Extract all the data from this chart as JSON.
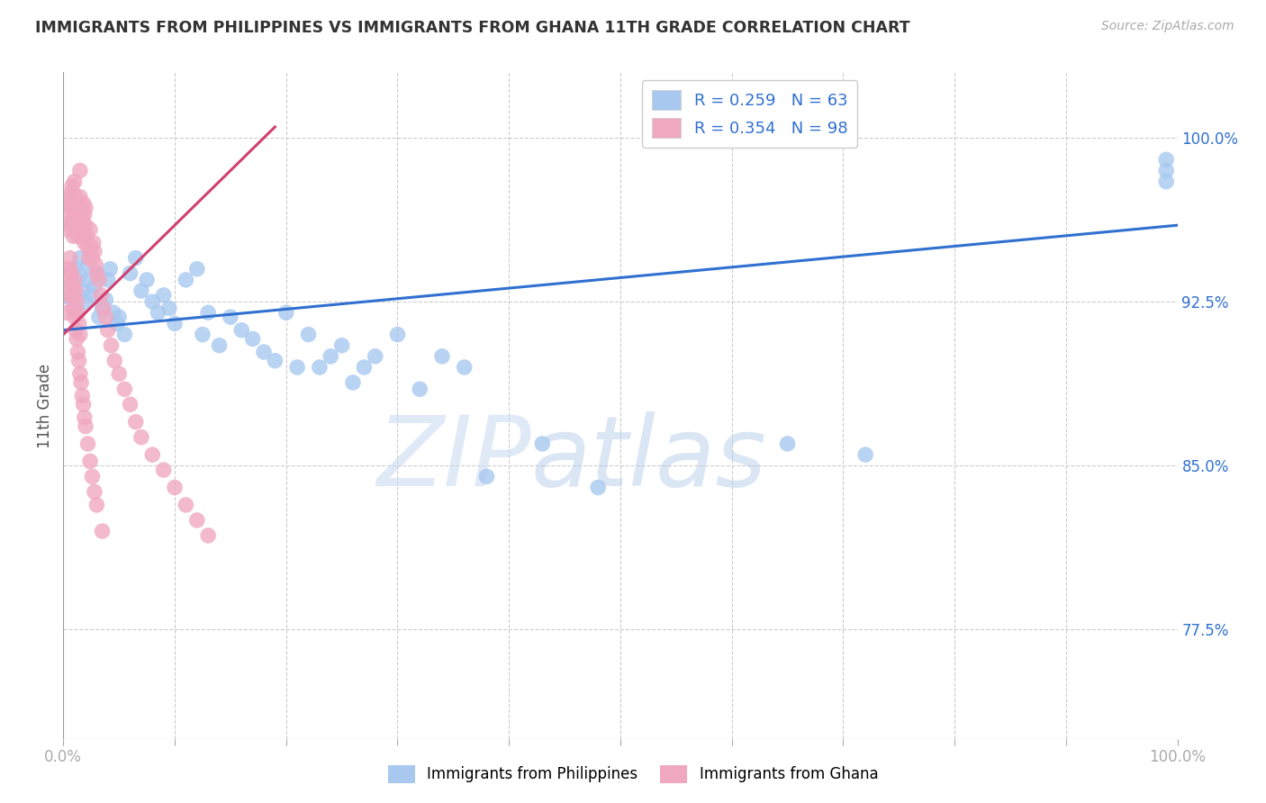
{
  "title": "IMMIGRANTS FROM PHILIPPINES VS IMMIGRANTS FROM GHANA 11TH GRADE CORRELATION CHART",
  "source": "Source: ZipAtlas.com",
  "ylabel": "11th Grade",
  "ylabel_right_ticks": [
    "100.0%",
    "92.5%",
    "85.0%",
    "77.5%"
  ],
  "ylabel_right_vals": [
    1.0,
    0.925,
    0.85,
    0.775
  ],
  "xlim": [
    0.0,
    1.0
  ],
  "ylim": [
    0.725,
    1.03
  ],
  "legend_R1": "R = 0.259",
  "legend_N1": "N = 63",
  "legend_R2": "R = 0.354",
  "legend_N2": "N = 98",
  "blue_color": "#a8c8f0",
  "pink_color": "#f0a8c0",
  "trendline_blue": "#3070d0",
  "trendline_pink": "#d04070",
  "label1": "Immigrants from Philippines",
  "label2": "Immigrants from Ghana",
  "blue_scatter_x": [
    0.005,
    0.008,
    0.01,
    0.012,
    0.015,
    0.015,
    0.018,
    0.018,
    0.02,
    0.022,
    0.022,
    0.025,
    0.028,
    0.03,
    0.032,
    0.035,
    0.038,
    0.04,
    0.042,
    0.045,
    0.048,
    0.05,
    0.055,
    0.06,
    0.065,
    0.07,
    0.075,
    0.08,
    0.085,
    0.09,
    0.095,
    0.1,
    0.11,
    0.12,
    0.125,
    0.13,
    0.14,
    0.15,
    0.16,
    0.17,
    0.18,
    0.19,
    0.2,
    0.21,
    0.22,
    0.23,
    0.24,
    0.25,
    0.26,
    0.27,
    0.28,
    0.3,
    0.32,
    0.34,
    0.36,
    0.38,
    0.43,
    0.48,
    0.65,
    0.72,
    0.99,
    0.99,
    0.99
  ],
  "blue_scatter_y": [
    0.927,
    0.933,
    0.94,
    0.921,
    0.937,
    0.945,
    0.93,
    0.955,
    0.925,
    0.935,
    0.942,
    0.928,
    0.932,
    0.938,
    0.918,
    0.922,
    0.926,
    0.935,
    0.94,
    0.92,
    0.915,
    0.918,
    0.91,
    0.938,
    0.945,
    0.93,
    0.935,
    0.925,
    0.92,
    0.928,
    0.922,
    0.915,
    0.935,
    0.94,
    0.91,
    0.92,
    0.905,
    0.918,
    0.912,
    0.908,
    0.902,
    0.898,
    0.92,
    0.895,
    0.91,
    0.895,
    0.9,
    0.905,
    0.888,
    0.895,
    0.9,
    0.91,
    0.885,
    0.9,
    0.895,
    0.845,
    0.86,
    0.84,
    0.86,
    0.855,
    0.99,
    0.985,
    0.98
  ],
  "pink_scatter_x": [
    0.003,
    0.004,
    0.005,
    0.006,
    0.006,
    0.007,
    0.007,
    0.008,
    0.008,
    0.009,
    0.009,
    0.01,
    0.01,
    0.01,
    0.011,
    0.011,
    0.012,
    0.012,
    0.013,
    0.013,
    0.014,
    0.014,
    0.015,
    0.015,
    0.015,
    0.016,
    0.016,
    0.017,
    0.017,
    0.018,
    0.018,
    0.019,
    0.019,
    0.02,
    0.02,
    0.021,
    0.022,
    0.023,
    0.024,
    0.025,
    0.026,
    0.027,
    0.028,
    0.029,
    0.03,
    0.032,
    0.034,
    0.036,
    0.038,
    0.04,
    0.043,
    0.046,
    0.05,
    0.055,
    0.06,
    0.065,
    0.07,
    0.08,
    0.09,
    0.1,
    0.11,
    0.12,
    0.13,
    0.005,
    0.006,
    0.007,
    0.008,
    0.009,
    0.01,
    0.011,
    0.012,
    0.013,
    0.014,
    0.015,
    0.003,
    0.004,
    0.005,
    0.006,
    0.007,
    0.008,
    0.009,
    0.01,
    0.011,
    0.012,
    0.013,
    0.014,
    0.015,
    0.016,
    0.017,
    0.018,
    0.019,
    0.02,
    0.022,
    0.024,
    0.026,
    0.028,
    0.03,
    0.035
  ],
  "pink_scatter_y": [
    0.97,
    0.958,
    0.965,
    0.972,
    0.96,
    0.968,
    0.975,
    0.962,
    0.978,
    0.955,
    0.963,
    0.97,
    0.958,
    0.98,
    0.965,
    0.973,
    0.96,
    0.968,
    0.955,
    0.963,
    0.97,
    0.958,
    0.965,
    0.973,
    0.985,
    0.96,
    0.968,
    0.955,
    0.963,
    0.97,
    0.958,
    0.965,
    0.952,
    0.96,
    0.968,
    0.955,
    0.95,
    0.945,
    0.958,
    0.95,
    0.945,
    0.952,
    0.948,
    0.942,
    0.938,
    0.935,
    0.928,
    0.922,
    0.918,
    0.912,
    0.905,
    0.898,
    0.892,
    0.885,
    0.878,
    0.87,
    0.863,
    0.855,
    0.848,
    0.84,
    0.832,
    0.825,
    0.818,
    0.94,
    0.945,
    0.938,
    0.932,
    0.928,
    0.935,
    0.93,
    0.925,
    0.92,
    0.915,
    0.91,
    0.92,
    0.928,
    0.935,
    0.94,
    0.933,
    0.928,
    0.922,
    0.918,
    0.912,
    0.908,
    0.902,
    0.898,
    0.892,
    0.888,
    0.882,
    0.878,
    0.872,
    0.868,
    0.86,
    0.852,
    0.845,
    0.838,
    0.832,
    0.82
  ],
  "blue_trend_x": [
    0.0,
    1.0
  ],
  "blue_trend_y": [
    0.912,
    0.96
  ],
  "pink_trend_x": [
    0.0,
    0.19
  ],
  "pink_trend_y": [
    0.91,
    1.005
  ],
  "watermark_zip": "ZIP",
  "watermark_atlas": "atlas",
  "background_color": "#ffffff",
  "grid_color": "#cccccc"
}
